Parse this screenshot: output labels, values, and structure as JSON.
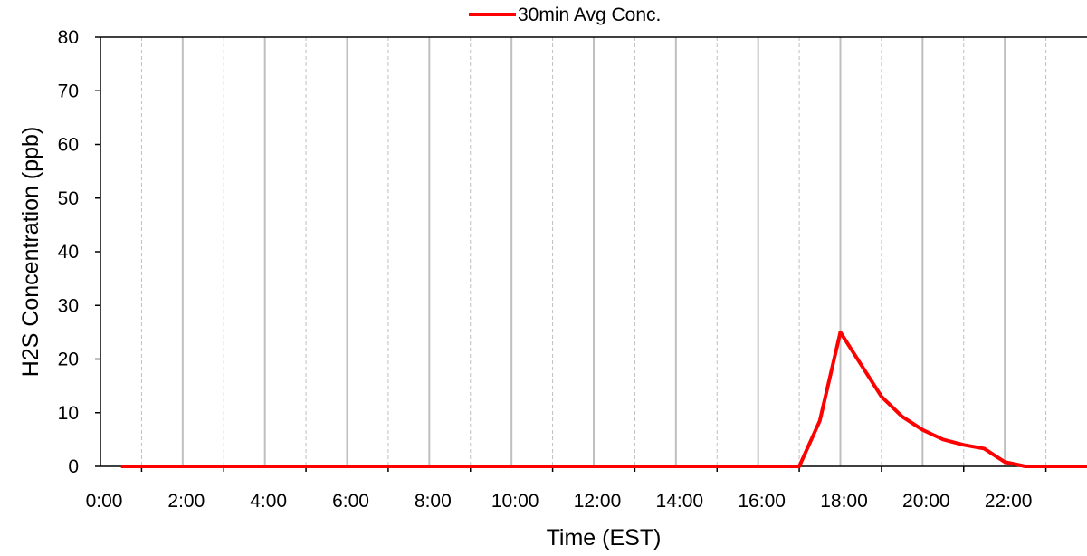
{
  "chart_data": {
    "type": "line",
    "title": "",
    "xlabel": "Time (EST)",
    "ylabel": "H2S Concentration (ppb)",
    "ylim": [
      0,
      80
    ],
    "xlim_hours": [
      0,
      24
    ],
    "y_ticks": [
      "0",
      "10",
      "20",
      "30",
      "40",
      "50",
      "60",
      "70",
      "80"
    ],
    "x_ticks": [
      "0:00",
      "2:00",
      "4:00",
      "6:00",
      "8:00",
      "10:00",
      "12:00",
      "14:00",
      "16:00",
      "18:00",
      "20:00",
      "22:00"
    ],
    "grid": {
      "major_vertical": true,
      "minor_vertical_dashed": true,
      "horizontal": false
    },
    "legend_position": "top-center",
    "series": [
      {
        "name": "30min Avg Conc.",
        "color": "#ff0000",
        "x": [
          "0:30",
          "1:00",
          "1:30",
          "2:00",
          "2:30",
          "3:00",
          "3:30",
          "4:00",
          "4:30",
          "5:00",
          "5:30",
          "6:00",
          "6:30",
          "7:00",
          "7:30",
          "8:00",
          "8:30",
          "9:00",
          "9:30",
          "10:00",
          "10:30",
          "11:00",
          "11:30",
          "12:00",
          "12:30",
          "13:00",
          "13:30",
          "14:00",
          "14:30",
          "15:00",
          "15:30",
          "16:00",
          "16:30",
          "17:00",
          "17:30",
          "18:00",
          "18:30",
          "19:00",
          "19:30",
          "20:00",
          "20:30",
          "21:00",
          "21:30",
          "22:00",
          "22:30",
          "23:00",
          "23:30",
          "24:00"
        ],
        "values": [
          0,
          0,
          0,
          0,
          0,
          0,
          0,
          0,
          0,
          0,
          0,
          0,
          0,
          0,
          0,
          0,
          0,
          0,
          0,
          0,
          0,
          0,
          0,
          0,
          0,
          0,
          0,
          0,
          0,
          0,
          0,
          0,
          0,
          0,
          8.5,
          25,
          19,
          13,
          9.3,
          6.8,
          5,
          4,
          3.3,
          0.8,
          0,
          0,
          0,
          0
        ]
      }
    ]
  }
}
